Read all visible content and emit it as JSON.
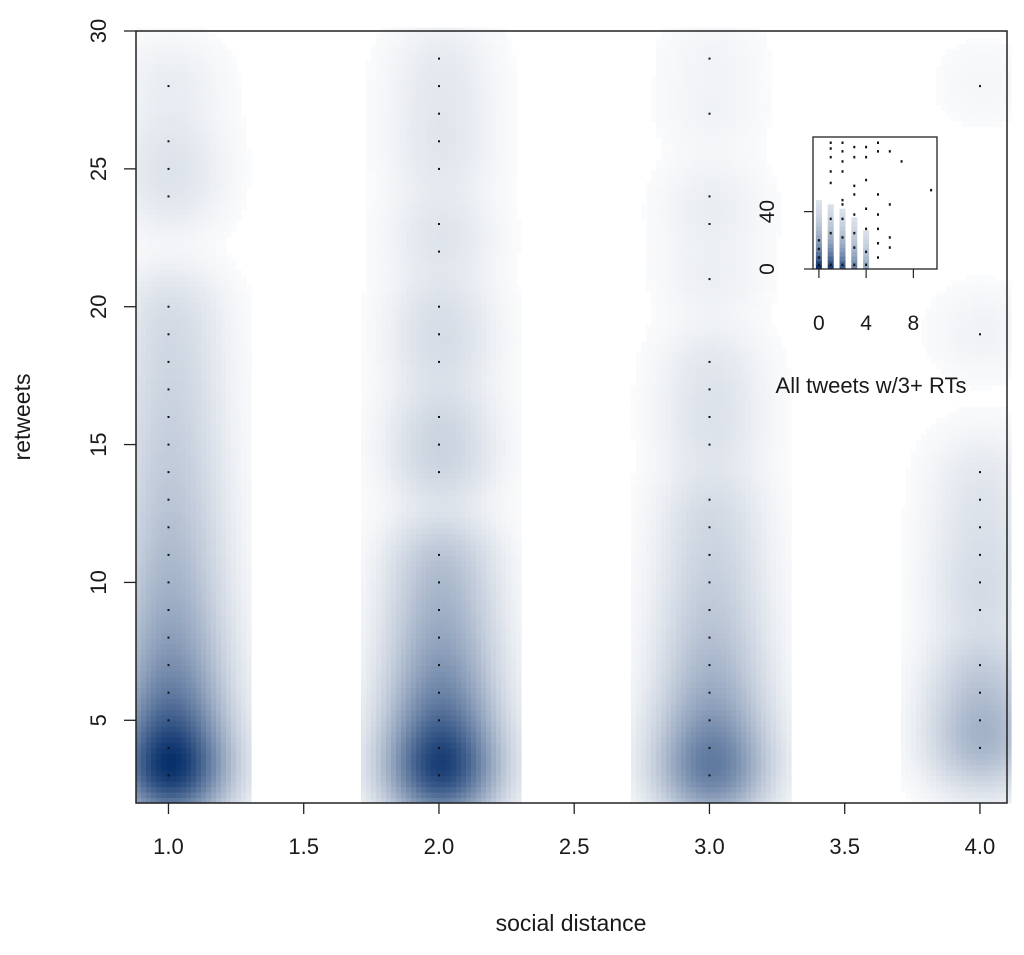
{
  "chart_data": [
    {
      "type": "heatmap",
      "title": "",
      "xlabel": "social distance",
      "ylabel": "retweets",
      "xlim": [
        0.88,
        4.1
      ],
      "ylim": [
        2.0,
        30.0
      ],
      "x_ticks": [
        "1.0",
        "1.5",
        "2.0",
        "2.5",
        "3.0",
        "3.5",
        "4.0"
      ],
      "y_ticks": [
        "5",
        "10",
        "15",
        "20",
        "25",
        "30"
      ],
      "color_scale": {
        "low": "#ffffff",
        "high": "#08306b"
      },
      "grid": false,
      "legend": "none",
      "points": {
        "1": [
          3,
          4,
          5,
          6,
          7,
          8,
          9,
          10,
          11,
          12,
          13,
          14,
          15,
          16,
          17,
          18,
          19,
          20,
          24,
          25,
          26,
          28
        ],
        "2": [
          3,
          4,
          5,
          6,
          7,
          8,
          9,
          10,
          11,
          14,
          15,
          16,
          18,
          19,
          20,
          22,
          23,
          25,
          26,
          27,
          28,
          29
        ],
        "3": [
          3,
          4,
          5,
          6,
          7,
          8,
          9,
          10,
          11,
          12,
          13,
          15,
          16,
          17,
          18,
          21,
          23,
          24,
          27,
          29
        ],
        "4": [
          4,
          5,
          6,
          7,
          9,
          10,
          11,
          12,
          13,
          14,
          19,
          28
        ]
      },
      "density_weights": {
        "1": 1.0,
        "2": 0.85,
        "3": 0.38,
        "4": 0.2
      }
    },
    {
      "type": "scatter",
      "title": "",
      "caption": "All tweets w/3+ RTs",
      "x_ticks": [
        "0",
        "4",
        "8"
      ],
      "y_ticks": [
        "0",
        "40"
      ],
      "xlim": [
        -0.5,
        10
      ],
      "ylim": [
        0,
        92
      ],
      "points": [
        [
          0,
          3
        ],
        [
          0,
          8
        ],
        [
          0,
          14
        ],
        [
          0,
          20
        ],
        [
          1,
          3
        ],
        [
          1,
          25
        ],
        [
          1,
          35
        ],
        [
          1,
          60
        ],
        [
          1,
          68
        ],
        [
          1,
          78
        ],
        [
          1,
          84
        ],
        [
          1,
          88
        ],
        [
          2,
          3
        ],
        [
          2,
          22
        ],
        [
          2,
          35
        ],
        [
          2,
          45
        ],
        [
          2,
          48
        ],
        [
          2,
          68
        ],
        [
          2,
          75
        ],
        [
          2,
          82
        ],
        [
          2,
          88
        ],
        [
          3,
          3
        ],
        [
          3,
          15
        ],
        [
          3,
          25
        ],
        [
          3,
          38
        ],
        [
          3,
          52
        ],
        [
          3,
          58
        ],
        [
          3,
          78
        ],
        [
          3,
          85
        ],
        [
          4,
          3
        ],
        [
          4,
          12
        ],
        [
          4,
          28
        ],
        [
          4,
          42
        ],
        [
          4,
          62
        ],
        [
          4,
          78
        ],
        [
          4,
          85
        ],
        [
          5,
          8
        ],
        [
          5,
          18
        ],
        [
          5,
          28
        ],
        [
          5,
          38
        ],
        [
          5,
          52
        ],
        [
          5,
          82
        ],
        [
          5,
          88
        ],
        [
          6,
          15
        ],
        [
          6,
          22
        ],
        [
          6,
          45
        ],
        [
          6,
          82
        ],
        [
          7,
          75
        ],
        [
          9.5,
          55
        ]
      ]
    }
  ]
}
